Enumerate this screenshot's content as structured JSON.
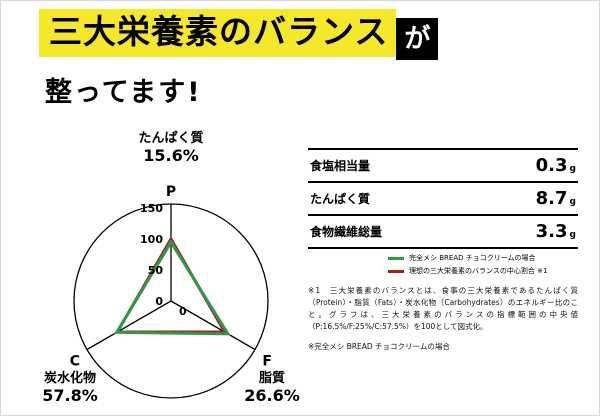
{
  "headline": {
    "highlight": "三大栄養素のバランス",
    "suffix": "が",
    "line2": "整ってます!"
  },
  "chart_data": {
    "type": "radar",
    "title": "三大栄養素のバランス",
    "axes": [
      {
        "key": "P",
        "label": "たんぱく質",
        "percent": "15.6%"
      },
      {
        "key": "F",
        "label": "脂質",
        "percent": "26.6%"
      },
      {
        "key": "C",
        "label": "炭水化物",
        "percent": "57.8%"
      }
    ],
    "ticks": [
      150,
      100,
      50,
      0
    ],
    "center_zero_label": "0",
    "scale_note": "ideal balance normalized to 100 (P:16.5%/F:25%/C:57.5%)",
    "series": [
      {
        "name": "完全メシ BREAD チョコクリームの場合",
        "color": "#2e9a47",
        "values": [
          95,
          106,
          101
        ]
      },
      {
        "name": "理想の三大栄養素のバランスの中心割合 ※1",
        "color": "#a8201d",
        "values": [
          100,
          100,
          100
        ]
      }
    ]
  },
  "table": {
    "rows": [
      {
        "label": "食塩相当量",
        "value": "0.3",
        "unit": "g"
      },
      {
        "label": "たんぱく質",
        "value": "8.7",
        "unit": "g"
      },
      {
        "label": "食物繊維総量",
        "value": "3.3",
        "unit": "g"
      }
    ]
  },
  "legend": {
    "items": [
      {
        "label": "完全メシ BREAD チョコクリームの場合",
        "color": "#2e9a47"
      },
      {
        "label": "理想の三大栄養素のバランスの中心割合 ※1",
        "color": "#a8201d"
      }
    ]
  },
  "footnotes": {
    "note1": "※1　三大栄養素のバランスとは、食事の三大栄養素であるたんぱく質（Protein）・脂質（Fats）・炭水化物（Carbohydrates）のエネルギー比のこと。グラフは、三大栄養素のバランスの指標範囲の中央値（P:16.5%/F:25%/C:57.5%）を100として図式化。",
    "note2": "※完全メシ BREAD チョコクリームの場合"
  }
}
